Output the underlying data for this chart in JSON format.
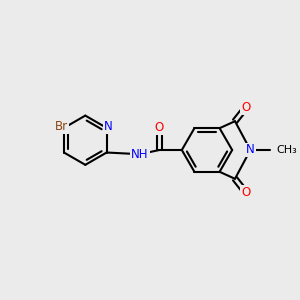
{
  "bg_color": "#EBEBEB",
  "bond_color": "#000000",
  "bond_width": 1.5,
  "atom_colors": {
    "N": "#0000FF",
    "O": "#FF0000",
    "Br": "#8B4513",
    "C": "#000000"
  },
  "font_size": 8.5
}
